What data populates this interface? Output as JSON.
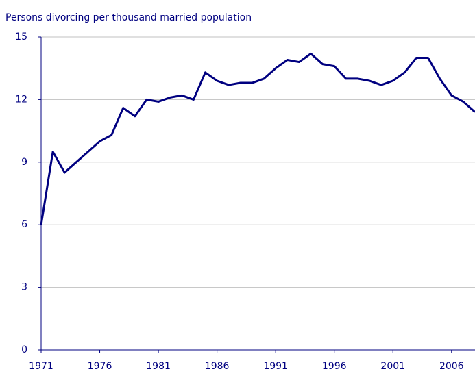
{
  "chart_data": {
    "type": "line",
    "title": "Persons divorcing per thousand married population",
    "x": [
      1971,
      1972,
      1973,
      1974,
      1975,
      1976,
      1977,
      1978,
      1979,
      1980,
      1981,
      1982,
      1983,
      1984,
      1985,
      1986,
      1987,
      1988,
      1989,
      1990,
      1991,
      1992,
      1993,
      1994,
      1995,
      1996,
      1997,
      1998,
      1999,
      2000,
      2001,
      2002,
      2003,
      2004,
      2005,
      2006,
      2007,
      2008
    ],
    "values": [
      6.0,
      9.5,
      8.5,
      9.0,
      9.5,
      10.0,
      10.3,
      11.6,
      11.2,
      12.0,
      11.9,
      12.1,
      12.2,
      12.0,
      13.3,
      12.9,
      12.7,
      12.8,
      12.8,
      13.0,
      13.5,
      13.9,
      13.8,
      14.2,
      13.7,
      13.6,
      13.0,
      13.0,
      12.9,
      12.7,
      12.9,
      13.3,
      14.0,
      14.0,
      13.0,
      12.2,
      11.9,
      11.4
    ],
    "color": "#000080",
    "xlim": [
      1971,
      2008
    ],
    "xticks": [
      1971,
      1976,
      1981,
      1986,
      1991,
      1996,
      2001,
      2006
    ],
    "ylim": [
      0,
      15
    ],
    "yticks": [
      0,
      3,
      6,
      9,
      12,
      15
    ],
    "grid": true
  }
}
